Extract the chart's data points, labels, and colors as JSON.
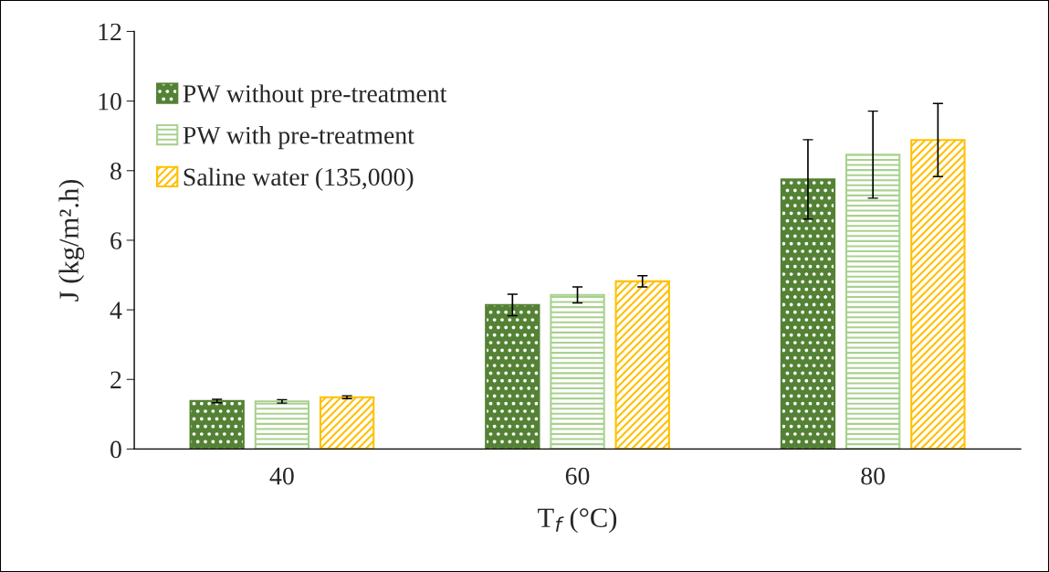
{
  "chart_data": {
    "type": "bar",
    "xlabel": "T$_{f}$ (°C)",
    "ylabel": "J (kg/m².h)",
    "categories": [
      "40",
      "60",
      "80"
    ],
    "series": [
      {
        "name": "PW without pre-treatment",
        "color": "#548235",
        "values": [
          1.38,
          4.14,
          7.75
        ],
        "errors": [
          0.05,
          0.31,
          1.14
        ]
      },
      {
        "name": "PW with pre-treatment",
        "color": "#a9d18e",
        "values": [
          1.37,
          4.43,
          8.46
        ],
        "errors": [
          0.05,
          0.23,
          1.25
        ]
      },
      {
        "name": "Saline water (135,000)",
        "color": "#ffc000",
        "values": [
          1.49,
          4.82,
          8.88
        ],
        "errors": [
          0.04,
          0.16,
          1.05
        ]
      }
    ],
    "ylim": [
      0,
      12
    ],
    "yticks": [
      0,
      2,
      4,
      6,
      8,
      10,
      12
    ],
    "grid": false,
    "legend": "top left"
  }
}
